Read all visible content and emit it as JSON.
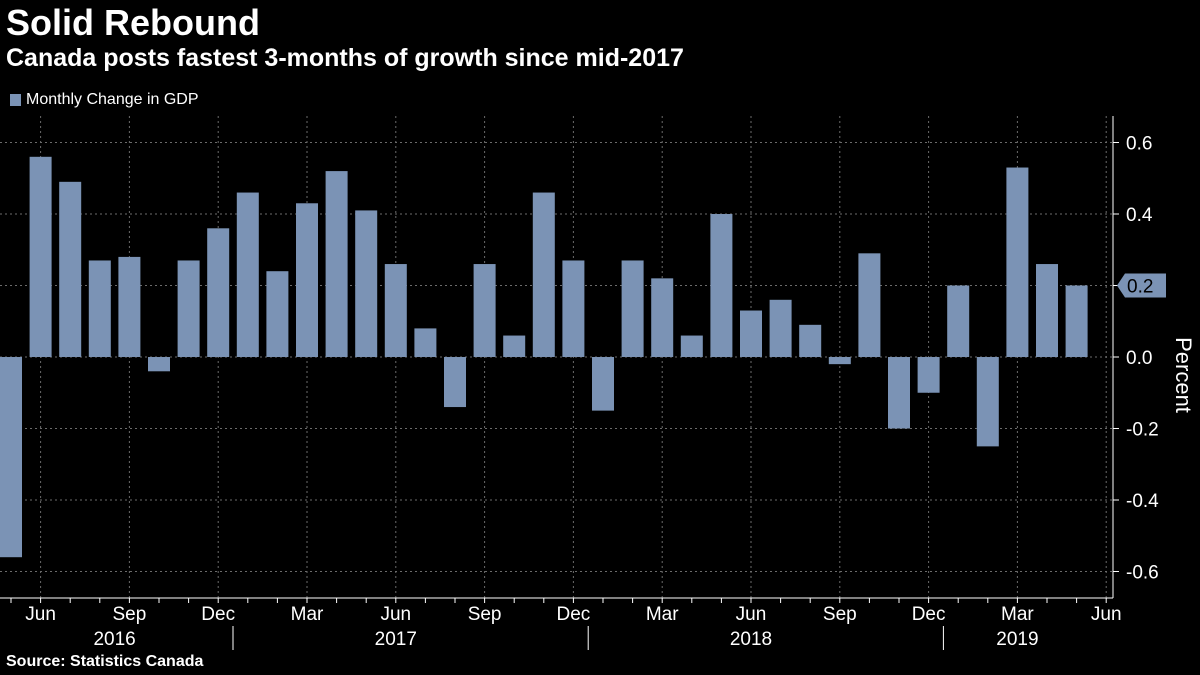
{
  "header": {
    "title": "Solid Rebound",
    "subtitle": "Canada posts fastest 3-months of growth since mid-2017"
  },
  "legend": {
    "label": "Monthly Change in GDP",
    "color": "#7b93b5"
  },
  "source": "Source:  Statistics Canada",
  "colors": {
    "background": "#000000",
    "bar": "#7b93b5",
    "grid": "#6b6b6b",
    "text": "#ffffff"
  },
  "chart_data": {
    "type": "bar",
    "title": "Solid Rebound",
    "subtitle": "Canada posts fastest 3-months of growth since mid-2017",
    "ylabel": "Percent",
    "xlabel": "",
    "ylim": [
      -0.65,
      0.67
    ],
    "yticks": [
      0.6,
      0.4,
      0.2,
      0.0,
      -0.2,
      -0.4,
      -0.6
    ],
    "ytick_labels": [
      "0.6",
      "0.4",
      "0.2",
      "0.0",
      "-0.2",
      "-0.4",
      "-0.6"
    ],
    "grid": true,
    "series": [
      {
        "name": "Monthly Change in GDP",
        "categories": [
          "May 2016",
          "Jun 2016",
          "Jul 2016",
          "Aug 2016",
          "Sep 2016",
          "Oct 2016",
          "Nov 2016",
          "Dec 2016",
          "Jan 2017",
          "Feb 2017",
          "Mar 2017",
          "Apr 2017",
          "May 2017",
          "Jun 2017",
          "Jul 2017",
          "Aug 2017",
          "Sep 2017",
          "Oct 2017",
          "Nov 2017",
          "Dec 2017",
          "Jan 2018",
          "Feb 2018",
          "Mar 2018",
          "Apr 2018",
          "May 2018",
          "Jun 2018",
          "Jul 2018",
          "Aug 2018",
          "Sep 2018",
          "Oct 2018",
          "Nov 2018",
          "Dec 2018",
          "Jan 2019",
          "Feb 2019",
          "Mar 2019",
          "Apr 2019",
          "May 2019"
        ],
        "values": [
          -0.56,
          0.56,
          0.49,
          0.27,
          0.28,
          -0.04,
          0.27,
          0.36,
          0.46,
          0.24,
          0.43,
          0.52,
          0.41,
          0.26,
          0.08,
          -0.14,
          0.26,
          0.06,
          0.46,
          0.27,
          -0.15,
          0.27,
          0.22,
          0.06,
          0.4,
          0.13,
          0.16,
          0.09,
          -0.02,
          0.29,
          -0.2,
          -0.1,
          0.2,
          -0.25,
          0.53,
          0.26,
          0.2
        ]
      }
    ],
    "month_labels": [
      {
        "index": 1,
        "label": "Jun"
      },
      {
        "index": 4,
        "label": "Sep"
      },
      {
        "index": 7,
        "label": "Dec"
      },
      {
        "index": 10,
        "label": "Mar"
      },
      {
        "index": 13,
        "label": "Jun"
      },
      {
        "index": 16,
        "label": "Sep"
      },
      {
        "index": 19,
        "label": "Dec"
      },
      {
        "index": 22,
        "label": "Mar"
      },
      {
        "index": 25,
        "label": "Jun"
      },
      {
        "index": 28,
        "label": "Sep"
      },
      {
        "index": 31,
        "label": "Dec"
      },
      {
        "index": 34,
        "label": "Mar"
      },
      {
        "index": 37,
        "label": "Jun"
      }
    ],
    "year_labels": [
      {
        "center_index": 3.5,
        "label": "2016"
      },
      {
        "center_index": 13,
        "label": "2017"
      },
      {
        "center_index": 25,
        "label": "2018"
      },
      {
        "center_index": 34,
        "label": "2019"
      }
    ],
    "year_dividers": [
      7.5,
      19.5,
      31.5
    ],
    "last_value_callout": "0.2"
  }
}
